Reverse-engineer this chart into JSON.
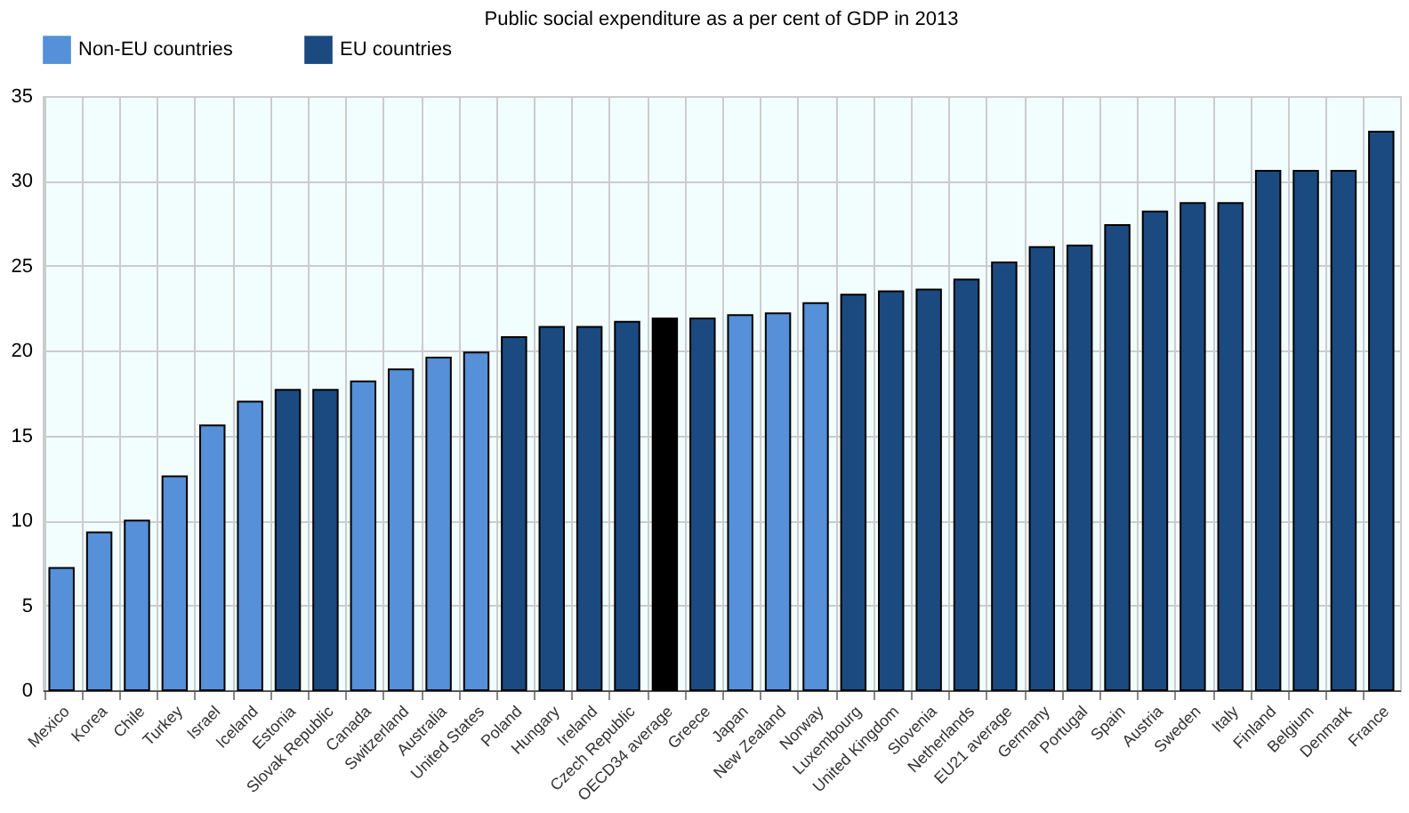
{
  "chart_data": {
    "type": "bar",
    "title": "Public social expenditure as a per cent of GDP in 2013",
    "categories": [
      "Mexico",
      "Korea",
      "Chile",
      "Turkey",
      "Israel",
      "Iceland",
      "Estonia",
      "Slovak Republic",
      "Canada",
      "Switzerland",
      "Australia",
      "United States",
      "Poland",
      "Hungary",
      "Ireland",
      "Czech Republic",
      "OECD34 average",
      "Greece",
      "Japan",
      "New Zealand",
      "Norway",
      "Luxembourg",
      "United Kingdom",
      "Slovenia",
      "Netherlands",
      "EU21 average",
      "Germany",
      "Portugal",
      "Spain",
      "Austria",
      "Sweden",
      "Italy",
      "Finland",
      "Belgium",
      "Denmark",
      "France"
    ],
    "series": [
      {
        "name": "Non-EU countries",
        "color": "#5590d8",
        "values": [
          7.2,
          9.3,
          10.0,
          12.6,
          15.6,
          17.0,
          null,
          null,
          18.2,
          18.9,
          19.6,
          19.9,
          null,
          null,
          null,
          null,
          null,
          null,
          22.1,
          22.2,
          22.8,
          null,
          null,
          null,
          null,
          null,
          null,
          null,
          null,
          null,
          null,
          null,
          null,
          null,
          null,
          null
        ]
      },
      {
        "name": "EU countries",
        "color": "#1a4a80",
        "values": [
          null,
          null,
          null,
          null,
          null,
          null,
          17.7,
          17.7,
          null,
          null,
          null,
          null,
          20.8,
          21.4,
          21.4,
          21.7,
          null,
          21.9,
          null,
          null,
          null,
          23.3,
          23.5,
          23.6,
          24.2,
          25.2,
          26.1,
          26.2,
          27.4,
          28.2,
          28.7,
          28.7,
          30.6,
          30.6,
          30.6,
          32.9
        ]
      },
      {
        "color": "#000000",
        "values": [
          null,
          null,
          null,
          null,
          null,
          null,
          null,
          null,
          null,
          null,
          null,
          null,
          null,
          null,
          null,
          null,
          21.9,
          null,
          null,
          null,
          null,
          null,
          null,
          null,
          null,
          null,
          null,
          null,
          null,
          null,
          null,
          null,
          null,
          null,
          null,
          null
        ]
      }
    ],
    "ylim": [
      0,
      35
    ],
    "yticks": [
      0,
      5,
      10,
      15,
      20,
      25,
      30,
      35
    ],
    "grid": true,
    "legend": "top"
  }
}
